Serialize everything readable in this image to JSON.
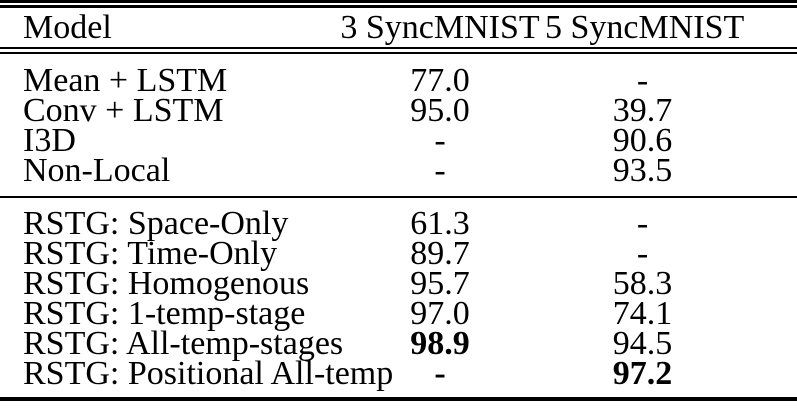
{
  "table": {
    "header": {
      "model": "Model",
      "sync3": "3 SyncMNIST",
      "sync5": "5 SyncMNIST"
    },
    "groups": [
      {
        "rows": [
          {
            "model": "Mean + LSTM",
            "sync3": "77.0",
            "sync5": "-",
            "bold3": false,
            "bold5": false
          },
          {
            "model": "Conv + LSTM",
            "sync3": "95.0",
            "sync5": "39.7",
            "bold3": false,
            "bold5": false
          },
          {
            "model": "I3D",
            "sync3": "-",
            "sync5": "90.6",
            "bold3": false,
            "bold5": false
          },
          {
            "model": "Non-Local",
            "sync3": "-",
            "sync5": "93.5",
            "bold3": false,
            "bold5": false
          }
        ]
      },
      {
        "rows": [
          {
            "model": "RSTG: Space-Only",
            "sync3": "61.3",
            "sync5": "-",
            "bold3": false,
            "bold5": false
          },
          {
            "model": "RSTG: Time-Only",
            "sync3": "89.7",
            "sync5": "-",
            "bold3": false,
            "bold5": false
          },
          {
            "model": "RSTG: Homogenous",
            "sync3": "95.7",
            "sync5": "58.3",
            "bold3": false,
            "bold5": false
          },
          {
            "model": "RSTG: 1-temp-stage",
            "sync3": "97.0",
            "sync5": "74.1",
            "bold3": false,
            "bold5": false
          },
          {
            "model": "RSTG: All-temp-stages",
            "sync3": "98.9",
            "sync5": "94.5",
            "bold3": true,
            "bold5": false
          },
          {
            "model": "RSTG: Positional All-temp",
            "sync3": "-",
            "sync5": "97.2",
            "bold3": true,
            "bold5": true
          }
        ]
      }
    ],
    "colors": {
      "text": "#000000",
      "background": "#ffffff",
      "rule": "#000000"
    }
  }
}
